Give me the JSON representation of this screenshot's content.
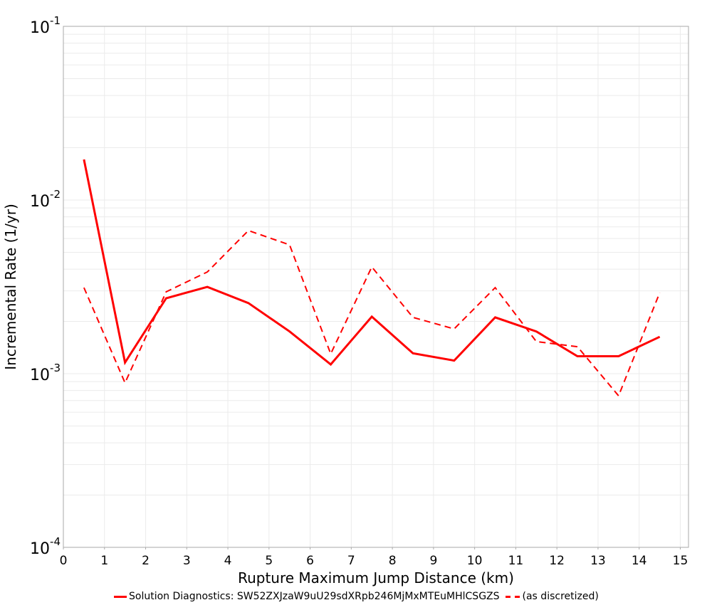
{
  "chart_data": {
    "type": "line",
    "title": "",
    "xlabel": "Rupture Maximum Jump Distance (km)",
    "ylabel": "Incremental Rate (1/yr)",
    "xlim": [
      0,
      15.2
    ],
    "ylim": [
      0.0001,
      0.1
    ],
    "yscale": "log",
    "grid": true,
    "legend_position": "bottom",
    "x_ticks": [
      0,
      1,
      2,
      3,
      4,
      5,
      6,
      7,
      8,
      9,
      10,
      11,
      12,
      13,
      14,
      15
    ],
    "y_ticks": [
      {
        "base": "10",
        "exp": "-1",
        "value": 0.1
      },
      {
        "base": "10",
        "exp": "-2",
        "value": 0.01
      },
      {
        "base": "10",
        "exp": "-3",
        "value": 0.001
      },
      {
        "base": "10",
        "exp": "-4",
        "value": 0.0001
      }
    ],
    "x": [
      0.5,
      1.5,
      2.5,
      3.5,
      4.5,
      5.5,
      6.5,
      7.5,
      8.5,
      9.5,
      10.5,
      11.5,
      12.5,
      13.5,
      14.5
    ],
    "series": [
      {
        "name": "Solution Diagnostics: SW52ZXJzaW9uU29sdXRpb246MjMxMTEuMHlCSGZS",
        "style": "solid",
        "color": "#ff0000",
        "values": [
          0.0171,
          0.00116,
          0.00272,
          0.00316,
          0.00255,
          0.00175,
          0.00113,
          0.00213,
          0.00131,
          0.00119,
          0.00211,
          0.00175,
          0.00126,
          0.00126,
          0.00163
        ]
      },
      {
        "name": "(as discretized)",
        "style": "dashed",
        "color": "#ff0000",
        "values": [
          0.00313,
          0.000885,
          0.00296,
          0.00385,
          0.00667,
          0.00552,
          0.0013,
          0.00412,
          0.00211,
          0.00181,
          0.00313,
          0.00153,
          0.00143,
          0.000746,
          0.00293
        ]
      }
    ]
  },
  "legend": {
    "series_1_label": "Solution Diagnostics: SW52ZXJzaW9uU29sdXRpb246MjMxMTEuMHlCSGZS",
    "series_2_label": "(as discretized)"
  },
  "colors": {
    "series": "#ff0000",
    "grid": "#ebebeb",
    "frame": "#aaaaaa"
  }
}
